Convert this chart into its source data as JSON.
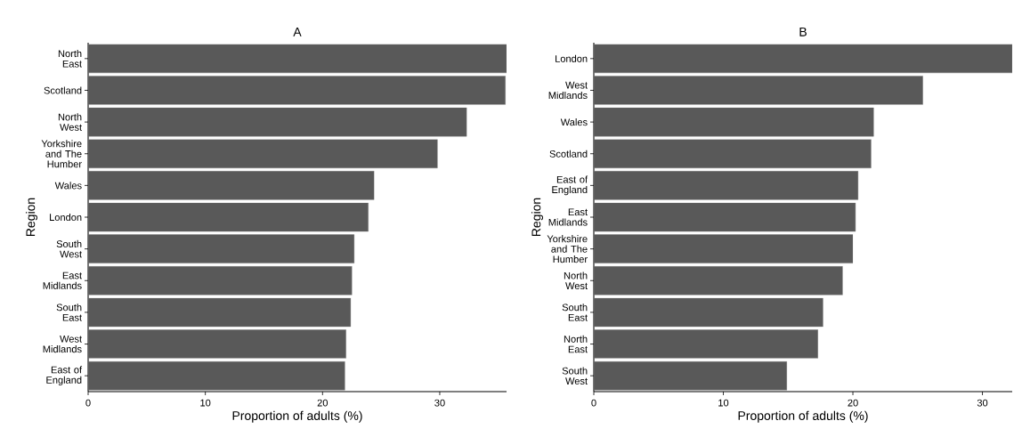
{
  "chart_data": [
    {
      "type": "bar",
      "orientation": "horizontal",
      "title": "A",
      "xlabel": "Proportion of adults (%)",
      "ylabel": "Region",
      "color": "#595959",
      "categories": [
        "North East",
        "Scotland",
        "North West",
        "Yorkshire and The Humber",
        "Wales",
        "London",
        "South West",
        "East Midlands",
        "South East",
        "West Midlands",
        "East of England"
      ],
      "values": [
        35.7,
        35.6,
        32.3,
        29.8,
        24.4,
        23.9,
        22.7,
        22.5,
        22.4,
        22.0,
        21.9
      ],
      "xlim": [
        0,
        35.7
      ],
      "xticks": [
        0,
        10,
        20,
        30
      ],
      "grid": false
    },
    {
      "type": "bar",
      "orientation": "horizontal",
      "title": "B",
      "xlabel": "Proportion of adults (%)",
      "ylabel": "Region",
      "color": "#595959",
      "categories": [
        "London",
        "West Midlands",
        "Wales",
        "Scotland",
        "East of England",
        "East Midlands",
        "Yorkshire and The Humber",
        "North West",
        "South East",
        "North East",
        "South West"
      ],
      "values": [
        32.3,
        25.4,
        21.6,
        21.4,
        20.4,
        20.2,
        20.0,
        19.2,
        17.7,
        17.3,
        14.9
      ],
      "xlim": [
        0,
        32.3
      ],
      "xticks": [
        0,
        10,
        20,
        30
      ],
      "grid": false
    }
  ]
}
